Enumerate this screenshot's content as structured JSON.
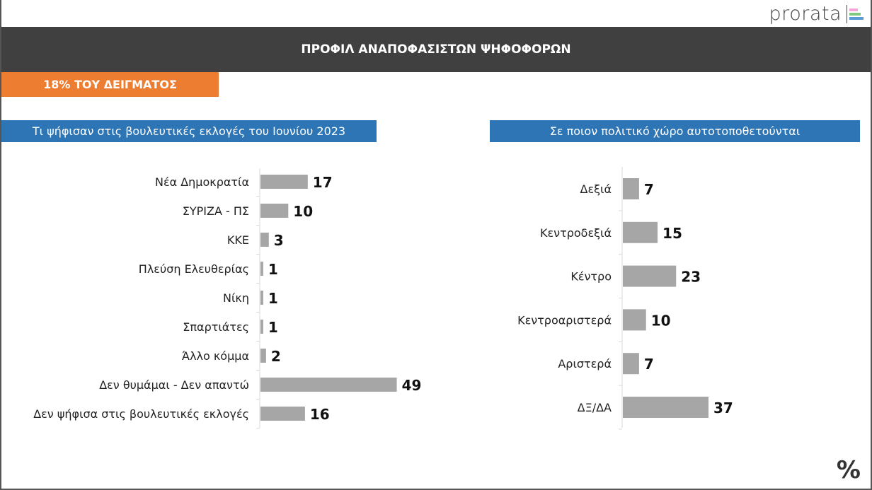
{
  "logo": {
    "text": "prorata",
    "colors": [
      "#f4a6d7",
      "#7fc97f",
      "#5b9bd5"
    ]
  },
  "header": {
    "title": "ΠΡΟΦΙΛ ΑΝΑΠΟΦΑΣΙΣΤΩΝ ΨΗΦΟΦΟΡΩΝ"
  },
  "badge": {
    "label": "18% ΤΟΥ ΔΕΙΓΜΑΤΟΣ"
  },
  "footer": {
    "symbol": "%"
  },
  "colors": {
    "bar": "#a6a6a6",
    "header": "#404040",
    "accent": "#ed7d31",
    "blue": "#2e75b6"
  },
  "chart_data": [
    {
      "type": "bar",
      "orientation": "horizontal",
      "title": "Τι ψήφισαν στις βουλευτικές εκλογές του Ιουνίου 2023",
      "categories": [
        "Νέα Δημοκρατία",
        "ΣΥΡΙΖΑ - ΠΣ",
        "ΚΚΕ",
        "Πλεύση Ελευθερίας",
        "Νίκη",
        "Σπαρτιάτες",
        "Άλλο κόμμα",
        "Δεν θυμάμαι - Δεν απαντώ",
        "Δεν ψήφισα στις βουλευτικές εκλογές"
      ],
      "values": [
        17,
        10,
        3,
        1,
        1,
        1,
        2,
        49,
        16
      ],
      "unit": "%"
    },
    {
      "type": "bar",
      "orientation": "horizontal",
      "title": "Σε ποιον πολιτικό χώρο αυτοτοποθετούνται",
      "categories": [
        "Δεξιά",
        "Κεντροδεξιά",
        "Κέντρο",
        "Κεντροαριστερά",
        "Αριστερά",
        "ΔΞ/ΔΑ"
      ],
      "values": [
        7,
        15,
        23,
        10,
        7,
        37
      ],
      "unit": "%"
    }
  ]
}
